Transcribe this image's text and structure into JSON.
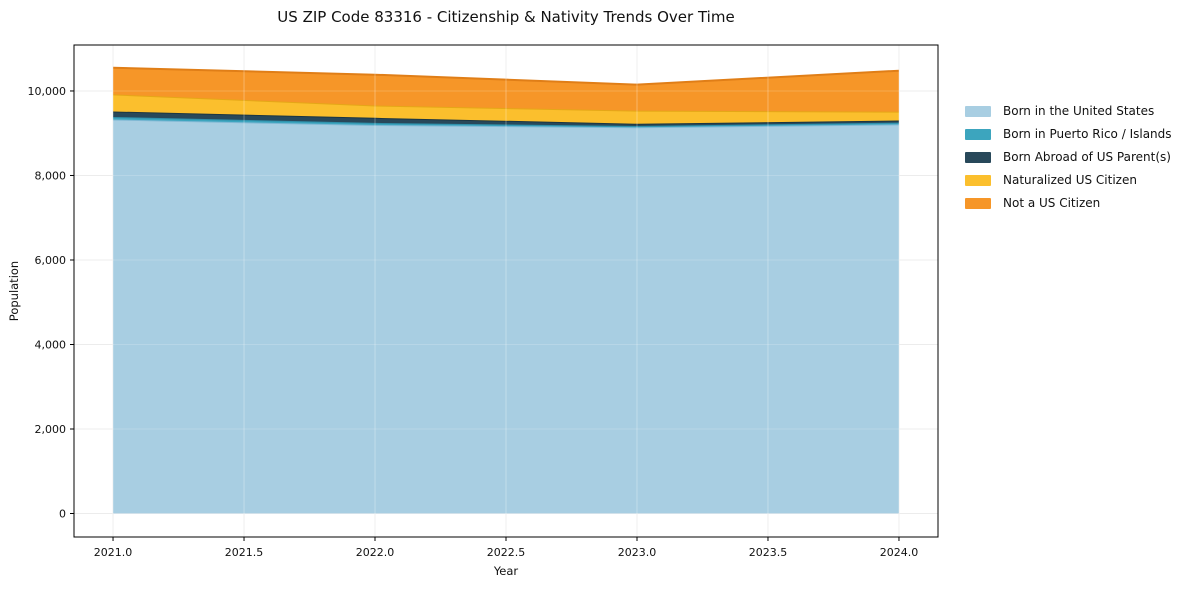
{
  "title": "US ZIP Code 83316 - Citizenship & Nativity Trends Over Time",
  "axes": {
    "xlabel": "Year",
    "ylabel": "Population",
    "x_tick_labels": [
      "2021.0",
      "2021.5",
      "2022.0",
      "2022.5",
      "2023.0",
      "2023.5",
      "2024.0"
    ],
    "y_tick_labels": [
      "0",
      "2,000",
      "4,000",
      "6,000",
      "8,000",
      "10,000"
    ]
  },
  "colors": {
    "background": "#ffffff",
    "grid": "#e8e8e8",
    "axis": "#000000",
    "text": "#111111"
  },
  "chart_data": {
    "type": "area",
    "stacked": true,
    "title": "US ZIP Code 83316 - Citizenship & Nativity Trends Over Time",
    "xlabel": "Year",
    "ylabel": "Population",
    "x": [
      2021,
      2022,
      2023,
      2024
    ],
    "series": [
      {
        "name": "Born in the United States",
        "color": "#A8CEE2",
        "edge_color": "#7FB8D4",
        "values": [
          9325,
          9195,
          9140,
          9210
        ]
      },
      {
        "name": "Born in Puerto Rico / Islands",
        "color": "#3CA5BE",
        "edge_color": "#2E8FAA",
        "values": [
          60,
          50,
          30,
          40
        ]
      },
      {
        "name": "Born Abroad of US Parent(s)",
        "color": "#28485A",
        "edge_color": "#1C3642",
        "values": [
          130,
          120,
          55,
          50
        ]
      },
      {
        "name": "Naturalized US Citizen",
        "color": "#FBBF2D",
        "edge_color": "#E5A717",
        "values": [
          405,
          290,
          310,
          210
        ]
      },
      {
        "name": "Not a US Citizen",
        "color": "#F69628",
        "edge_color": "#E07E17",
        "values": [
          630,
          730,
          615,
          970
        ]
      }
    ],
    "totals_by_year": [
      10550,
      10385,
      10150,
      10480
    ],
    "x_ticks": [
      2021.0,
      2021.5,
      2022.0,
      2022.5,
      2023.0,
      2023.5,
      2024.0
    ],
    "y_ticks": [
      0,
      2000,
      4000,
      6000,
      8000,
      10000
    ],
    "xlim": [
      2020.851,
      2024.149
    ],
    "ylim": [
      -556,
      11088
    ],
    "grid": true,
    "legend_position": "outside-right"
  }
}
